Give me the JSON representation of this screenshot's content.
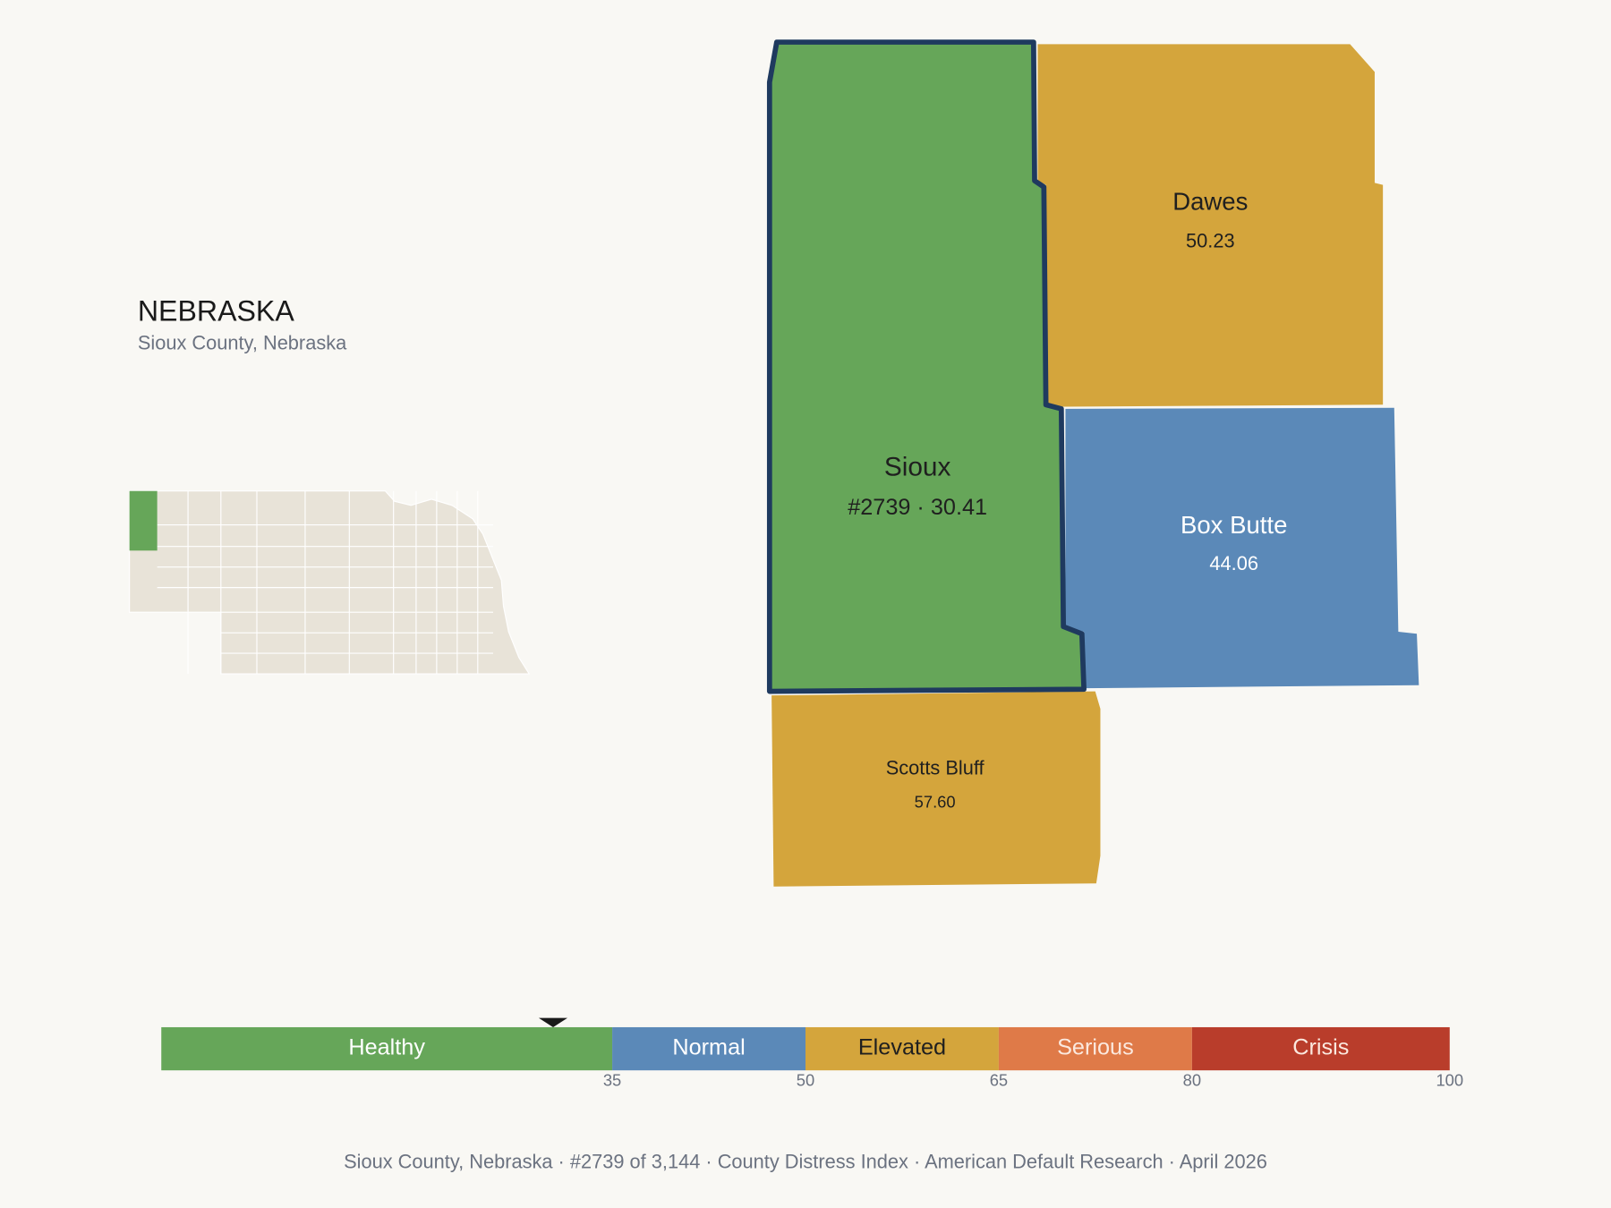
{
  "header": {
    "title": "NEBRASKA",
    "subtitle": "Sioux County, Nebraska"
  },
  "counties": [
    {
      "name": "Sioux",
      "value_label": "#2739 · 30.41",
      "score": 30.41,
      "selected": true
    },
    {
      "name": "Dawes",
      "value_label": "50.23",
      "score": 50.23,
      "selected": false
    },
    {
      "name": "Box Butte",
      "value_label": "44.06",
      "score": 44.06,
      "selected": false
    },
    {
      "name": "Scotts Bluff",
      "value_label": "57.60",
      "score": 57.6,
      "selected": false
    }
  ],
  "scale": {
    "lim": [
      0,
      100
    ],
    "ticks": [
      35,
      50,
      65,
      80,
      100
    ],
    "bands": [
      {
        "name": "Healthy",
        "color": "#66a659",
        "text_color": "#ffffff"
      },
      {
        "name": "Normal",
        "color": "#5b89b8",
        "text_color": "#ffffff"
      },
      {
        "name": "Elevated",
        "color": "#d4a53c",
        "text_color": "#1f1f1f"
      },
      {
        "name": "Serious",
        "color": "#df7a48",
        "text_color": "#fbe9df"
      },
      {
        "name": "Crisis",
        "color": "#b93d2b",
        "text_color": "#fbe9df"
      }
    ]
  },
  "footer": "Sioux County, Nebraska  ·  #2739 of 3,144  ·  County Distress Index  ·  American Default Research  ·  April 2026"
}
